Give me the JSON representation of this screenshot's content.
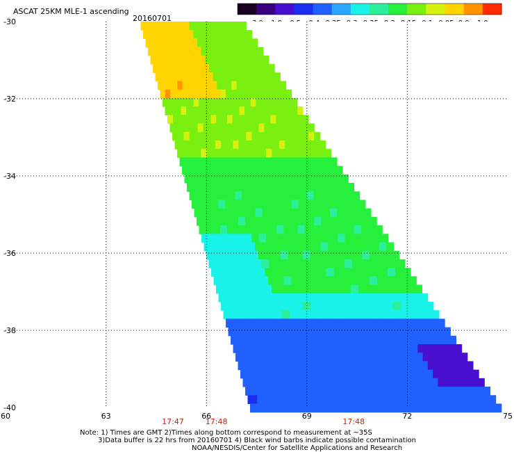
{
  "header": {
    "title": "ASCAT 25KM MLE-1 ascending",
    "date": "20160701"
  },
  "colorbar": {
    "labels": [
      "-3.0",
      "-1.0",
      "-0.5",
      "-0.4",
      "-0.35",
      "-0.3",
      "-0.25",
      "-0.2",
      "-0.15",
      "-0.1",
      "-0.05",
      "0.0",
      "1.0"
    ],
    "colors": [
      "#1a0020",
      "#3a0080",
      "#4a10d0",
      "#1a2ff0",
      "#1f60ff",
      "#2aa8ff",
      "#18f2e8",
      "#2bef9a",
      "#26f03c",
      "#7af010",
      "#d6f010",
      "#ffd400",
      "#ff9400",
      "#ff2a00"
    ]
  },
  "footnote": {
    "line1": "Note: 1) Times are GMT 2)Times along bottom correspond to measurement at ~35S",
    "line2": "3)Data buffer is 22 hrs from 20160701 4) Black wind barbs indicate possible contamination",
    "line3": "NOAA/NESDIS/Center for Satellite Applications and Research"
  },
  "chart_data": {
    "type": "heatmap",
    "title": "ASCAT 25KM MLE-1 ascending",
    "subtitle": "20160701",
    "xlim": [
      60,
      75
    ],
    "ylim": [
      -40,
      -30
    ],
    "x_ticks": [
      "60",
      "63",
      "66",
      "69",
      "72",
      "75"
    ],
    "y_ticks": [
      "-30",
      "-32",
      "-34",
      "-36",
      "-38",
      "-40"
    ],
    "grid": true,
    "colorbar_values": [
      -3.0,
      -1.0,
      -0.5,
      -0.4,
      -0.35,
      -0.3,
      -0.25,
      -0.2,
      -0.15,
      -0.1,
      -0.05,
      0.0,
      1.0
    ],
    "time_labels": [
      {
        "text": "17:47",
        "lon": 65
      },
      {
        "text": "17:48",
        "lon": 66.3
      },
      {
        "text": "17:48",
        "lon": 70.4
      }
    ],
    "swath": {
      "lat_top": -30,
      "lat_bottom": -40,
      "lon_left_top": 64.0,
      "lon_right_top": 67.1,
      "lon_left_bottom": 67.3,
      "lon_right_bottom": 74.8
    },
    "regions": [
      {
        "lat_range": [
          -32.0,
          -30.0
        ],
        "value": -0.02,
        "name": "north-west (orange)"
      },
      {
        "lat_range": [
          -33.5,
          -32.0
        ],
        "value": -0.12,
        "name": "north band (green)"
      },
      {
        "lat_range": [
          -37.0,
          -33.5
        ],
        "value": -0.18,
        "name": "central band (green)"
      },
      {
        "lat_range": [
          -37.6,
          -37.0
        ],
        "value": -0.27,
        "name": "transition (cyan)"
      },
      {
        "lat_range": [
          -40.0,
          -37.6
        ],
        "value": -0.38,
        "name": "south band (blue)"
      }
    ]
  }
}
